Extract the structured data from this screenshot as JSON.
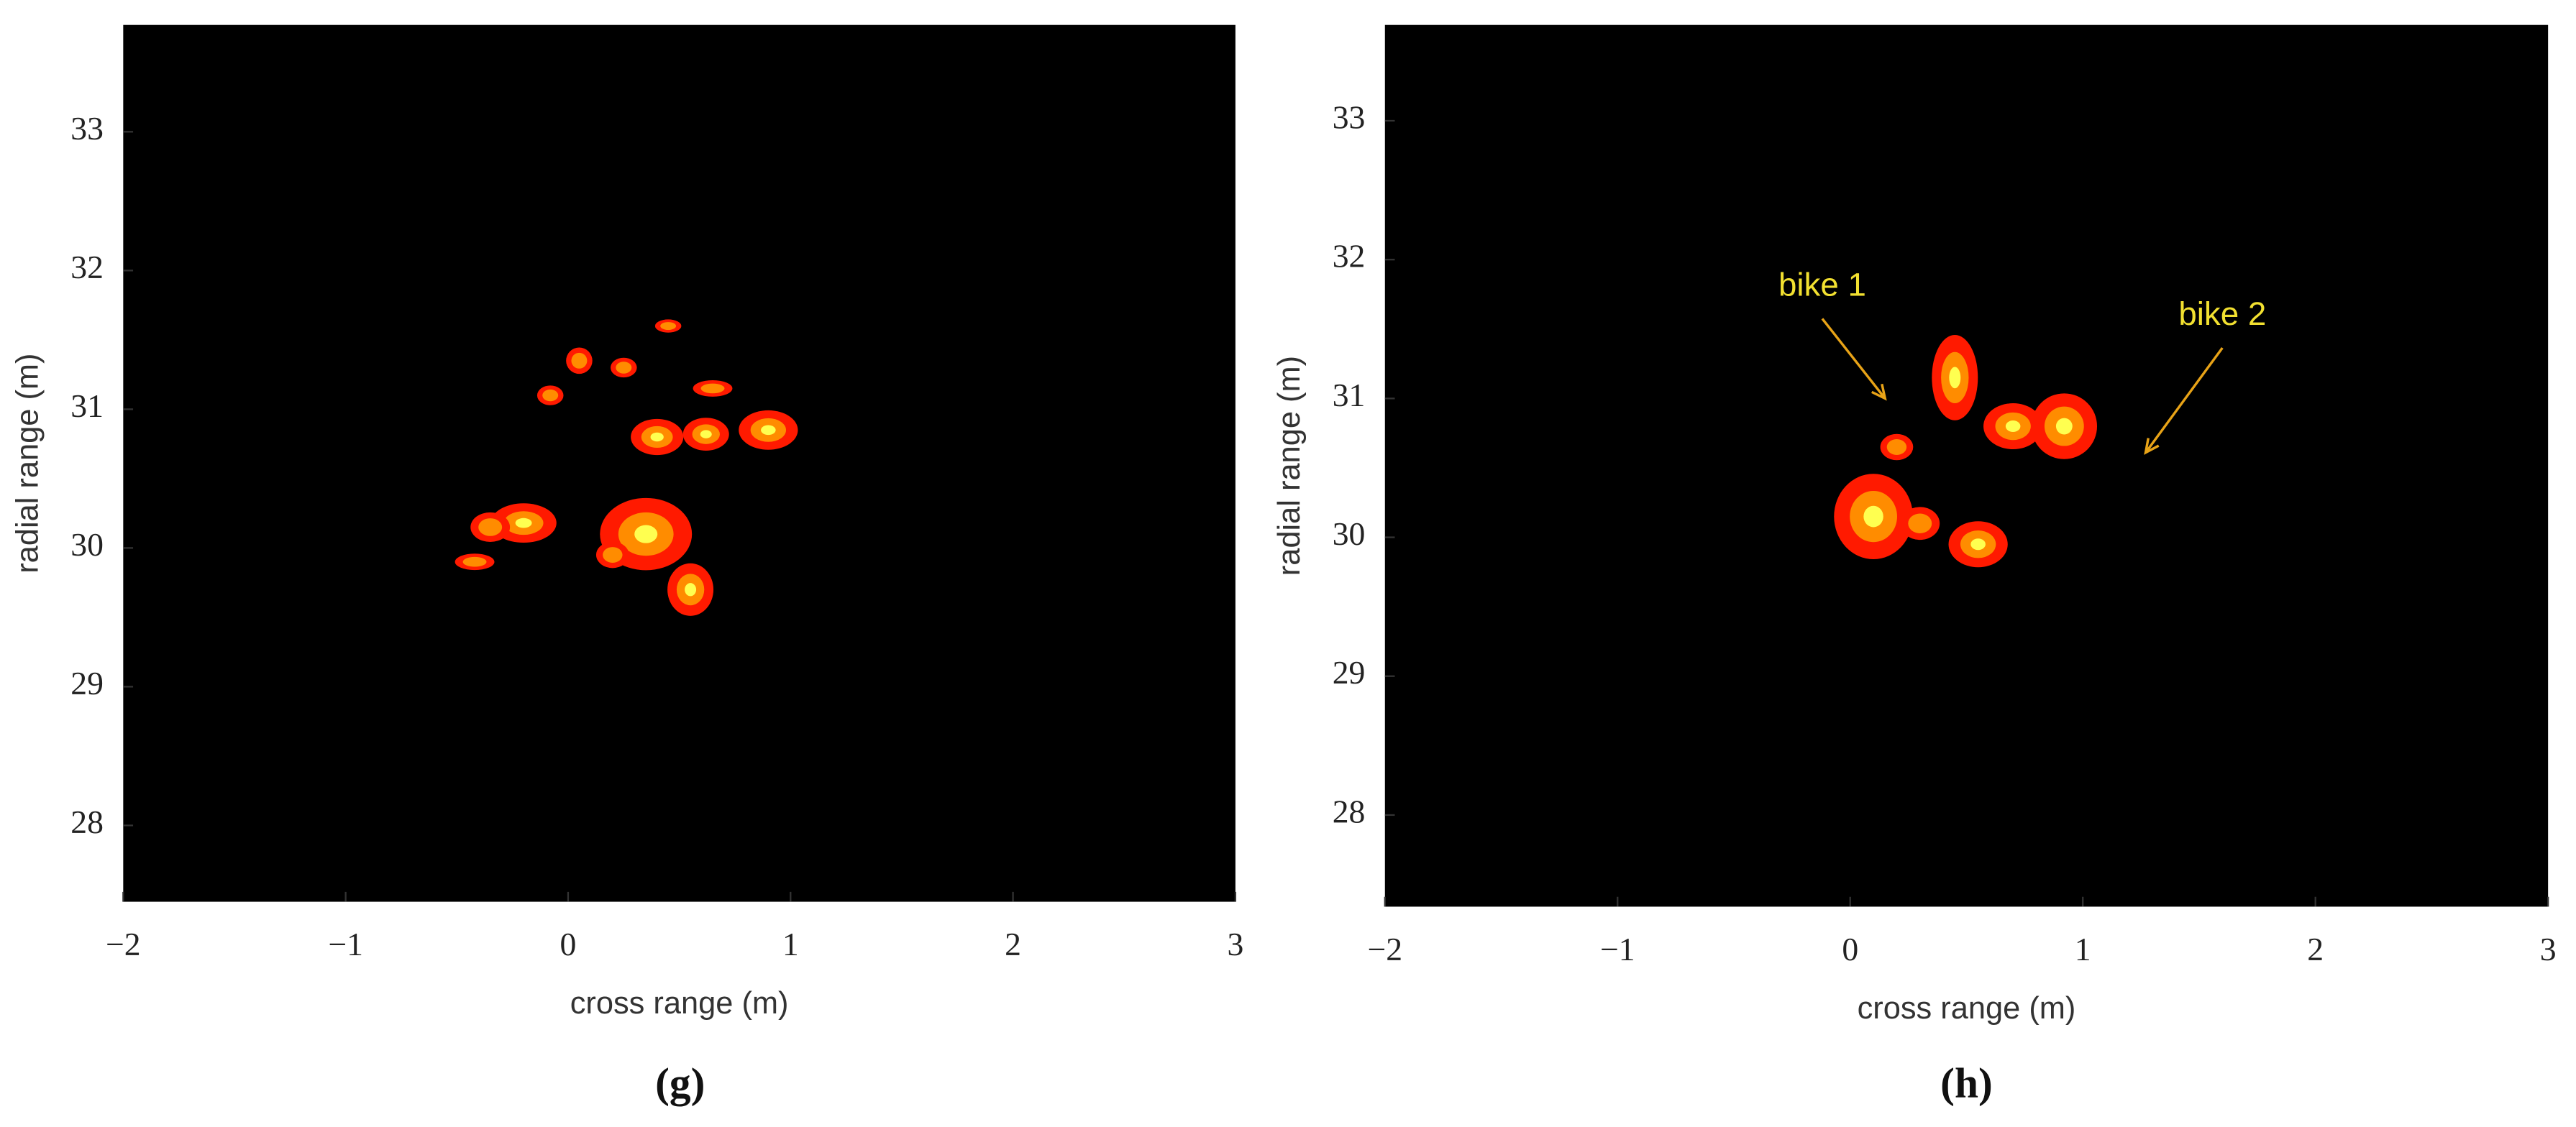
{
  "chart_data": [
    {
      "type": "contour",
      "panel_label": "(g)",
      "xlabel": "cross range (m)",
      "ylabel": "radial range (m)",
      "xlim": [
        -2,
        3
      ],
      "ylim": [
        27.45,
        33.77
      ],
      "xticks": [
        {
          "value": -2,
          "label": "−2"
        },
        {
          "value": -1,
          "label": "−1"
        },
        0,
        1,
        2,
        3
      ],
      "yticks": [
        28,
        29,
        30,
        31,
        32,
        33
      ],
      "background": "#000000",
      "colors": [
        "#ff1a00",
        "#ff8c00",
        "#ffff50"
      ],
      "x": [
        0.35,
        -0.2,
        -0.35,
        0.4,
        0.62,
        0.9,
        0.05,
        0.25,
        0.65,
        0.45,
        -0.08,
        -0.42,
        0.55,
        0.2
      ],
      "y": [
        30.1,
        30.18,
        30.15,
        30.8,
        30.82,
        30.85,
        31.35,
        31.3,
        31.15,
        31.6,
        31.1,
        29.9,
        29.7,
        29.95
      ]
    },
    {
      "type": "contour",
      "panel_label": "(h)",
      "xlabel": "cross range (m)",
      "ylabel": "radial range (m)",
      "xlim": [
        -2,
        3
      ],
      "ylim": [
        27.34,
        33.69
      ],
      "xticks": [
        {
          "value": -2,
          "label": "−2"
        },
        {
          "value": -1,
          "label": "−1"
        },
        0,
        1,
        2,
        3
      ],
      "yticks": [
        28,
        29,
        30,
        31,
        32,
        33
      ],
      "background": "#000000",
      "colors": [
        "#ff1a00",
        "#ff8c00",
        "#ffff50"
      ],
      "x": [
        0.1,
        0.55,
        0.3,
        0.45,
        0.7,
        0.92,
        0.2
      ],
      "y": [
        30.15,
        29.95,
        30.1,
        31.15,
        30.8,
        30.8,
        30.65
      ],
      "annotations": [
        {
          "text": "bike 1",
          "xytext": [
            -0.12,
            31.74
          ],
          "xy": [
            0.15,
            31.0
          ]
        },
        {
          "text": "bike 2",
          "xytext": [
            1.6,
            31.53
          ],
          "xy": [
            1.27,
            30.61
          ]
        }
      ]
    }
  ]
}
